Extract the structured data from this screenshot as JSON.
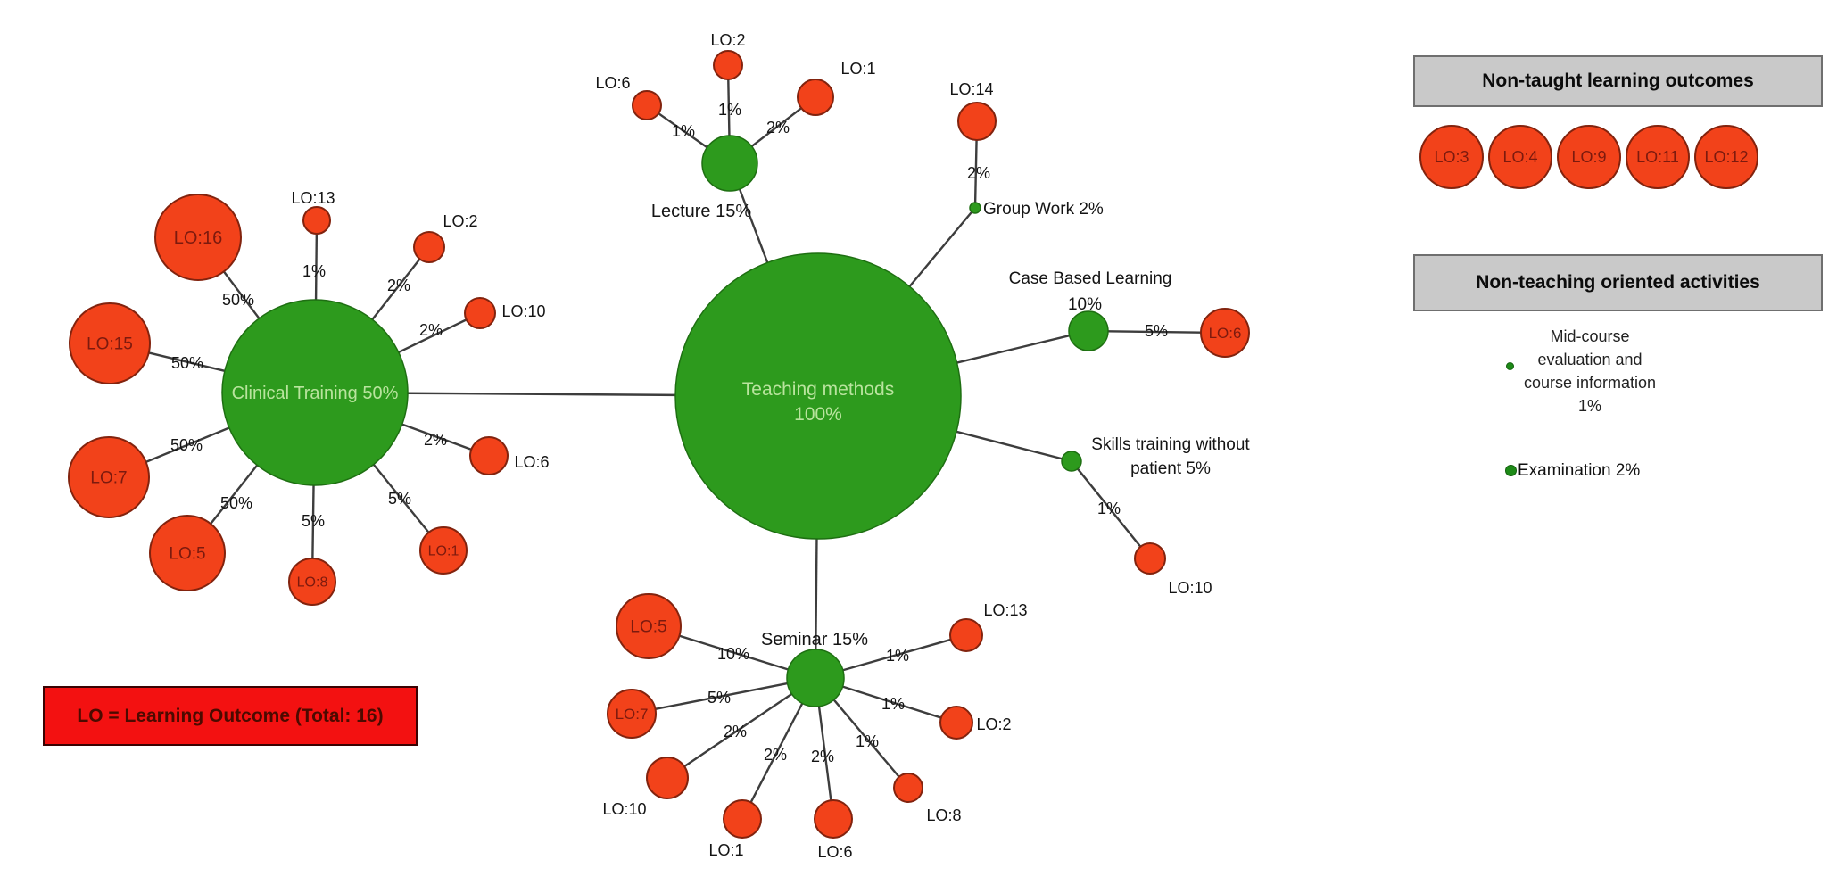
{
  "colors": {
    "method_fill": "#2d9a1d",
    "method_stroke": "#1e6f12",
    "method_text": "#b9e49e",
    "lo_fill": "#f2421a",
    "lo_stroke": "#82230e",
    "lo_text": "#7c1a0e",
    "edge": "#3d3d3d",
    "label_text": "#141414",
    "panel_bg": "#c9c9c9",
    "panel_border": "#6f6f6f",
    "legend_bg": "#f31111"
  },
  "center": {
    "label": "Teaching methods",
    "pct": "100%"
  },
  "methods": [
    {
      "id": "clinical",
      "label": "Clinical Training 50%",
      "satellites": [
        {
          "lo": "LO:16",
          "pct": "50%"
        },
        {
          "lo": "LO:13",
          "pct": "1%"
        },
        {
          "lo": "LO:2",
          "pct": "2%"
        },
        {
          "lo": "LO:10",
          "pct": "2%"
        },
        {
          "lo": "LO:6",
          "pct": "2%"
        },
        {
          "lo": "LO:1",
          "pct": "5%"
        },
        {
          "lo": "LO:8",
          "pct": "5%"
        },
        {
          "lo": "LO:5",
          "pct": "50%"
        },
        {
          "lo": "LO:7",
          "pct": "50%"
        },
        {
          "lo": "LO:15",
          "pct": "50%"
        }
      ]
    },
    {
      "id": "lecture",
      "label": "Lecture 15%",
      "satellites": [
        {
          "lo": "LO:6",
          "pct": "1%"
        },
        {
          "lo": "LO:2",
          "pct": "1%"
        },
        {
          "lo": "LO:1",
          "pct": "2%"
        }
      ]
    },
    {
      "id": "group_work",
      "label": "Group Work 2%",
      "satellites": [
        {
          "lo": "LO:14",
          "pct": "2%"
        }
      ]
    },
    {
      "id": "case_based",
      "label": "Case Based Learning",
      "pct": "10%",
      "satellites": [
        {
          "lo": "LO:6",
          "pct": "5%"
        }
      ]
    },
    {
      "id": "skills",
      "label_lines": [
        "Skills training without",
        "patient 5%"
      ],
      "satellites": [
        {
          "lo": "LO:10",
          "pct": "1%"
        }
      ]
    },
    {
      "id": "seminar",
      "label": "Seminar 15%",
      "satellites": [
        {
          "lo": "LO:5",
          "pct": "10%"
        },
        {
          "lo": "LO:7",
          "pct": "5%"
        },
        {
          "lo": "LO:10",
          "pct": "2%"
        },
        {
          "lo": "LO:1",
          "pct": "2%"
        },
        {
          "lo": "LO:6",
          "pct": "2%"
        },
        {
          "lo": "LO:8",
          "pct": "1%"
        },
        {
          "lo": "LO:2",
          "pct": "1%"
        },
        {
          "lo": "LO:13",
          "pct": "1%"
        }
      ]
    }
  ],
  "panels": {
    "non_taught": {
      "title": "Non-taught learning outcomes",
      "items": [
        "LO:3",
        "LO:4",
        "LO:9",
        "LO:11",
        "LO:12"
      ]
    },
    "non_teaching": {
      "title": "Non-teaching oriented activities",
      "mid_course": {
        "lines": [
          "Mid-course",
          "evaluation and",
          "course information",
          "1%"
        ]
      },
      "examination": "Examination 2%"
    }
  },
  "legend": {
    "text": "LO = Learning Outcome (Total: 16)"
  }
}
